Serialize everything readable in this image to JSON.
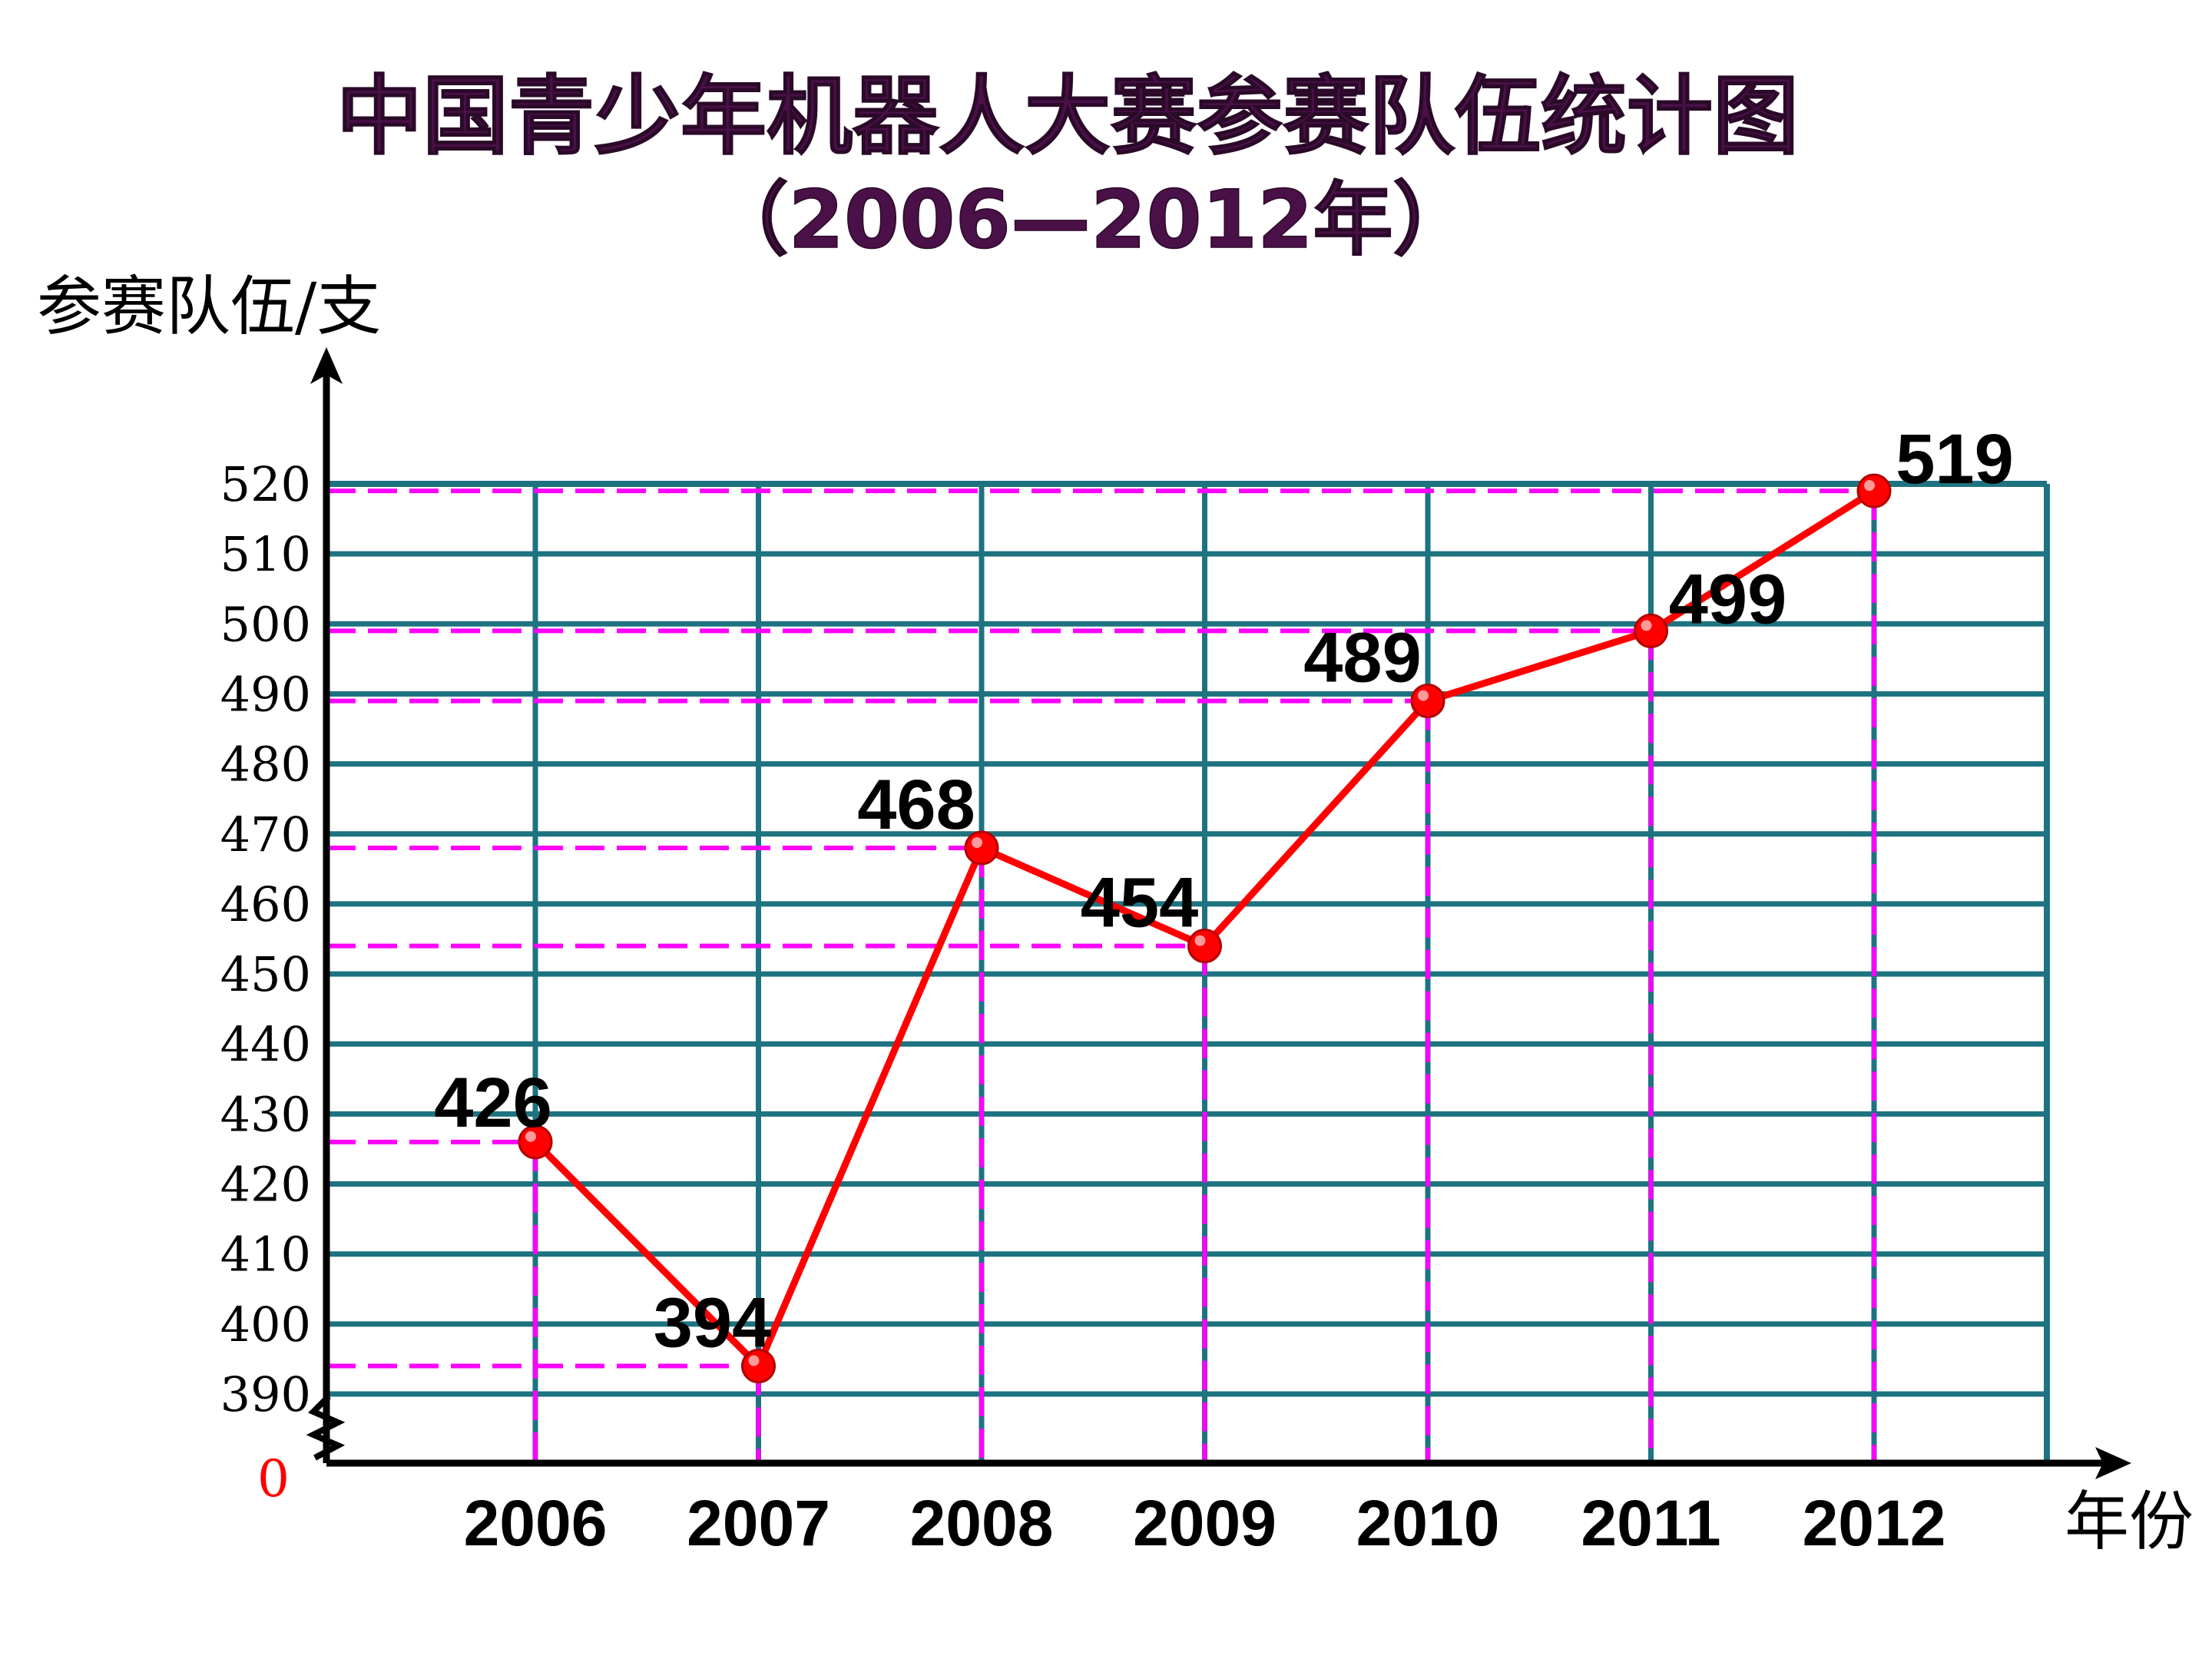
{
  "chart_data": {
    "type": "line",
    "title": "中国青少年机器人大赛参赛队伍统计图",
    "subtitle": "（2006—2012年）",
    "ylabel": "参赛队伍/支",
    "xlabel": "年份",
    "categories": [
      "2006",
      "2007",
      "2008",
      "2009",
      "2010",
      "2011",
      "2012"
    ],
    "values": [
      426,
      394,
      468,
      454,
      489,
      499,
      519
    ],
    "data_labels": [
      "426",
      "394",
      "468",
      "454",
      "489",
      "499",
      "519"
    ],
    "ylim": [
      390,
      520
    ],
    "ytick_labels": [
      "390",
      "400",
      "410",
      "420",
      "430",
      "440",
      "450",
      "460",
      "470",
      "480",
      "490",
      "500",
      "510",
      "520"
    ],
    "origin_label": "0",
    "axis_break": true,
    "grid": true,
    "colors": {
      "line": "#ff0000",
      "marker": "#ff0000",
      "grid": "#1e7380",
      "guide": "#ff00ff",
      "title": "#4a1048",
      "axis": "#000000",
      "origin": "#ff0000"
    }
  }
}
